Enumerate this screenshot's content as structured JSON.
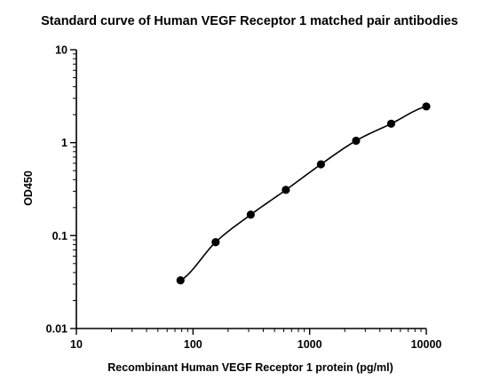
{
  "chart_data": {
    "type": "scatter",
    "title": "Standard curve of Human VEGF Receptor 1 matched pair antibodies",
    "xlabel": "Recombinant Human VEGF Receptor 1 protein (pg/ml)",
    "ylabel": "OD450",
    "x_scale": "log",
    "y_scale": "log",
    "xlim": [
      10,
      10000
    ],
    "ylim": [
      0.01,
      10
    ],
    "x_ticks": [
      "10",
      "100",
      "1000",
      "10000"
    ],
    "y_ticks": [
      "0.01",
      "0.1",
      "1",
      "10"
    ],
    "grid": false,
    "legend": "none",
    "fit_line": true,
    "series": [
      {
        "x": [
          78.125,
          156.25,
          312.5,
          625,
          1250,
          2500,
          5000,
          10000
        ],
        "y": [
          0.033,
          0.085,
          0.168,
          0.31,
          0.585,
          1.05,
          1.6,
          2.45
        ]
      }
    ]
  }
}
